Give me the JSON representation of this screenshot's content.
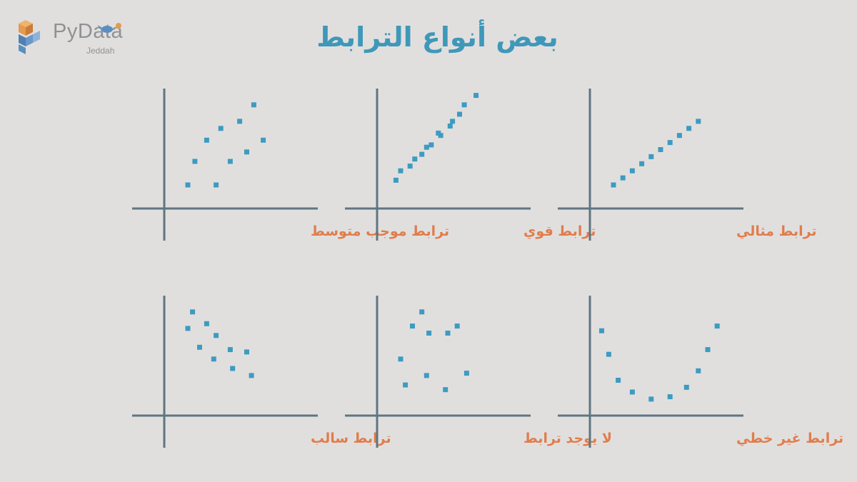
{
  "logo": {
    "name": "PyData",
    "sub": "Jeddah"
  },
  "title": "بعض أنواع الترابط",
  "colors": {
    "axis": "#5f7681",
    "dots": "#3d9bc1",
    "label": "#e07d4c",
    "title": "#3f98b9",
    "background": "#e1dfde"
  },
  "panels": [
    {
      "label": "ترابط موجب متوسط",
      "points": [
        [
          1,
          1
        ],
        [
          2.2,
          1
        ],
        [
          1.3,
          2
        ],
        [
          2.8,
          2
        ],
        [
          3.5,
          2.4
        ],
        [
          4.2,
          2.9
        ],
        [
          1.8,
          2.9
        ],
        [
          2.4,
          3.4
        ],
        [
          3.2,
          3.7
        ],
        [
          3.8,
          4.4
        ]
      ]
    },
    {
      "label": "ترابط قوي",
      "points": [
        [
          0.8,
          1.2
        ],
        [
          1.4,
          1.8
        ],
        [
          1.9,
          2.3
        ],
        [
          2.3,
          2.7
        ],
        [
          2.7,
          3.1
        ],
        [
          3.1,
          3.5
        ],
        [
          3.5,
          4
        ],
        [
          1,
          1.6
        ],
        [
          1.6,
          2.1
        ],
        [
          2.1,
          2.6
        ],
        [
          2.6,
          3.2
        ],
        [
          3.2,
          3.7
        ],
        [
          3.7,
          4.4
        ],
        [
          4.2,
          4.8
        ]
      ]
    },
    {
      "label": "ترابط مثالي",
      "points": [
        [
          1,
          1
        ],
        [
          1.4,
          1.3
        ],
        [
          1.8,
          1.6
        ],
        [
          2.2,
          1.9
        ],
        [
          2.6,
          2.2
        ],
        [
          3,
          2.5
        ],
        [
          3.4,
          2.8
        ],
        [
          3.8,
          3.1
        ],
        [
          4.2,
          3.4
        ],
        [
          4.6,
          3.7
        ]
      ]
    },
    {
      "label": "ترابط سالب",
      "points": [
        [
          1.2,
          4.4
        ],
        [
          1.8,
          3.9
        ],
        [
          2.2,
          3.4
        ],
        [
          1,
          3.7
        ],
        [
          1.5,
          2.9
        ],
        [
          2.1,
          2.4
        ],
        [
          2.8,
          2.8
        ],
        [
          3.5,
          2.7
        ],
        [
          2.9,
          2
        ],
        [
          3.7,
          1.7
        ]
      ]
    },
    {
      "label": "لا يوجد ترابط",
      "points": [
        [
          1.5,
          3.8
        ],
        [
          2.2,
          3.5
        ],
        [
          1.9,
          4.4
        ],
        [
          3,
          3.5
        ],
        [
          3.4,
          3.8
        ],
        [
          1,
          2.4
        ],
        [
          2.1,
          1.7
        ],
        [
          1.2,
          1.3
        ],
        [
          2.9,
          1.1
        ],
        [
          3.8,
          1.8
        ]
      ]
    },
    {
      "label": "ترابط غير خطي",
      "points": [
        [
          0.5,
          3.6
        ],
        [
          0.8,
          2.6
        ],
        [
          1.2,
          1.5
        ],
        [
          1.8,
          1
        ],
        [
          2.6,
          0.7
        ],
        [
          3.4,
          0.8
        ],
        [
          4.1,
          1.2
        ],
        [
          4.6,
          1.9
        ],
        [
          5,
          2.8
        ],
        [
          5.4,
          3.8
        ]
      ]
    }
  ]
}
